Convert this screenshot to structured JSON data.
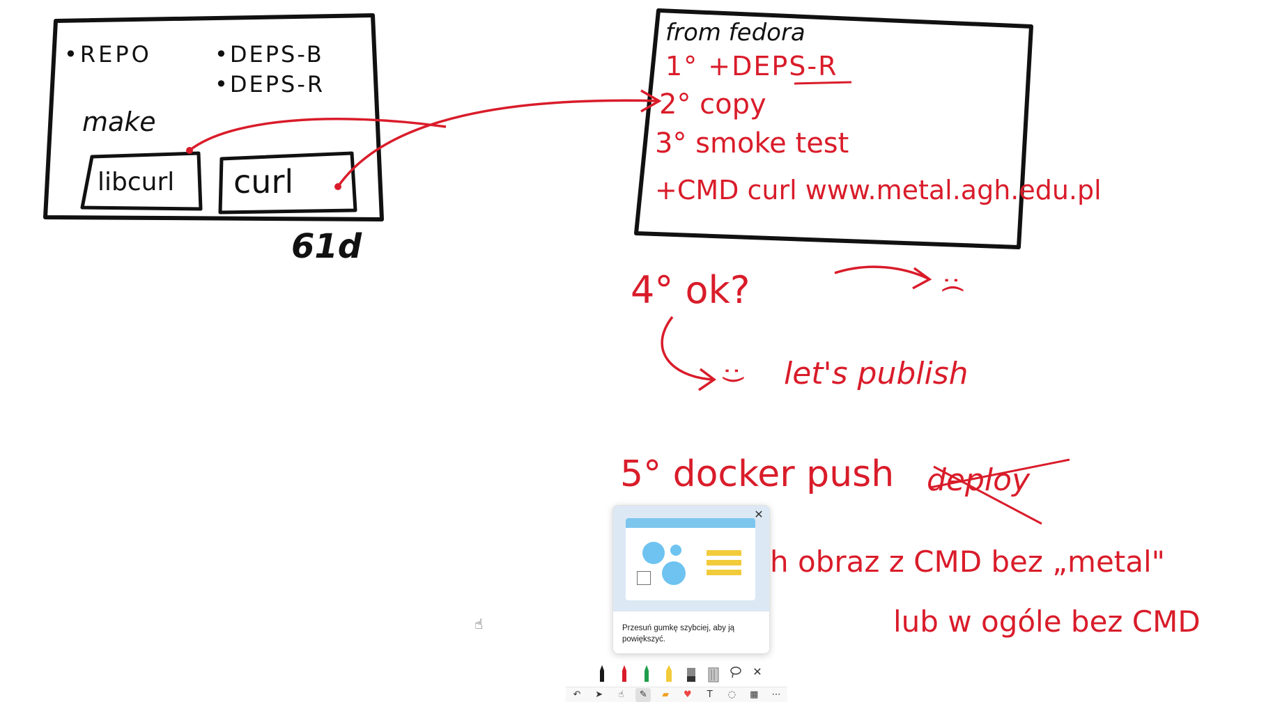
{
  "whiteboard": {
    "left_box": {
      "repo": "•REPO",
      "deps_b": "•DEPS-B",
      "deps_r": "•DEPS-R",
      "make": "make",
      "libcurl": "libcurl",
      "curl": "curl",
      "base": "61d"
    },
    "right_box": {
      "from": "from fedora",
      "step1": "1° +DEPS-R",
      "step2": "2° copy",
      "step3": "3° smoke test",
      "cmd": "+CMD curl www.metal.agh.edu.pl"
    },
    "notes": {
      "step4": "4° ok?",
      "sad": ":(",
      "happy": ":)",
      "publish": "let's publish",
      "step5": "5° docker push",
      "struck": "deploy",
      "line6a": "h obraz z CMD bez „metal\"",
      "line6b": "lub w ogóle bez CMD"
    }
  },
  "tip_popup": {
    "text": "Przesuń gumkę szybciej, aby ją powiększyć.",
    "close_icon": "close-icon"
  },
  "pen_toolbar": {
    "pens": [
      {
        "name": "black-pen",
        "color": "#1a1a1a"
      },
      {
        "name": "red-pen",
        "color": "#d91c2a"
      },
      {
        "name": "green-pen",
        "color": "#1e9e4a"
      },
      {
        "name": "yellow-highlighter",
        "color": "#f2cb3a"
      },
      {
        "name": "eraser",
        "color": "#555555"
      },
      {
        "name": "ruler",
        "color": "#9a9a9a"
      },
      {
        "name": "lasso",
        "color": "#444444"
      }
    ]
  },
  "main_toolbar": {
    "icons": [
      "undo-icon",
      "select-icon",
      "touch-write-icon",
      "pen-icon",
      "sticky-note-icon",
      "reaction-icon",
      "text-icon",
      "shapes-icon",
      "template-icon",
      "more-icon"
    ]
  }
}
